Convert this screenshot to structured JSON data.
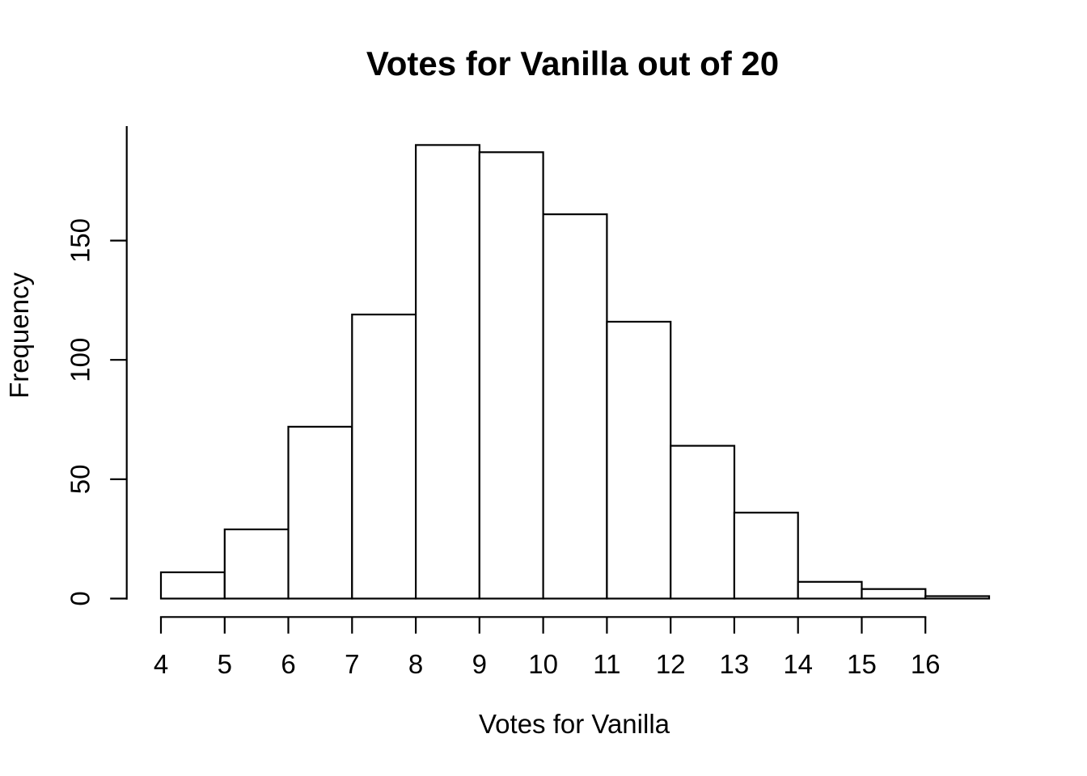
{
  "chart_data": {
    "type": "bar",
    "subtype": "histogram",
    "title": "Votes for Vanilla out of 20",
    "xlabel": "Votes for Vanilla",
    "ylabel": "Frequency",
    "bin_edges": [
      4,
      5,
      6,
      7,
      8,
      9,
      10,
      11,
      12,
      13,
      14,
      15,
      16,
      17
    ],
    "counts": [
      11,
      29,
      72,
      119,
      190,
      187,
      161,
      116,
      64,
      36,
      7,
      4,
      1
    ],
    "x_ticks": [
      4,
      5,
      6,
      7,
      8,
      9,
      10,
      11,
      12,
      13,
      14,
      15,
      16
    ],
    "y_ticks": [
      0,
      50,
      100,
      150
    ],
    "xlim": [
      4,
      17
    ],
    "ylim": [
      0,
      198
    ],
    "grid": false,
    "legend": null,
    "bar_fill": "#ffffff",
    "bar_stroke": "#000000",
    "axis_color": "#000000",
    "background": "#ffffff"
  }
}
